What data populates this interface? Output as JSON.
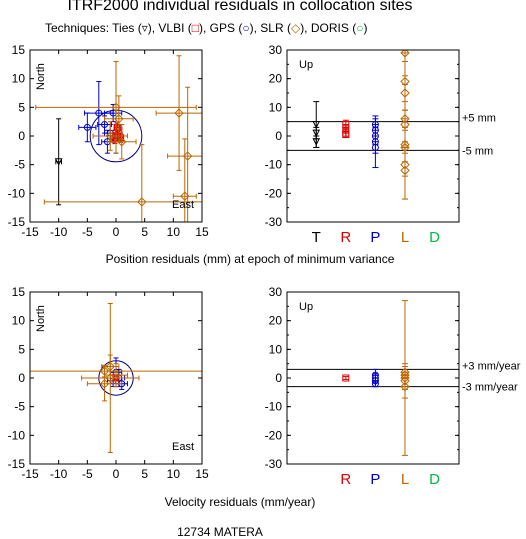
{
  "title": "ITRF2000 individual residuals in collocation sites",
  "subtitle_parts": [
    {
      "text": "Techniques: Ties (",
      "color": "#000000"
    },
    {
      "text": "▿",
      "color": "#000000"
    },
    {
      "text": "), VLBI (",
      "color": "#000000"
    },
    {
      "text": "□",
      "color": "#dd0000"
    },
    {
      "text": "), GPS (",
      "color": "#000000"
    },
    {
      "text": "○",
      "color": "#0000cc"
    },
    {
      "text": "), SLR (",
      "color": "#000000"
    },
    {
      "text": "◇",
      "color": "#bb6600"
    },
    {
      "text": "), DORIS (",
      "color": "#000000"
    },
    {
      "text": "○",
      "color": "#00bb44"
    },
    {
      "text": ")",
      "color": "#000000"
    }
  ],
  "position_xlabel": "Position residuals (mm) at epoch of minimum variance",
  "velocity_xlabel": "Velocity residuals (mm/year)",
  "station": "12734 MATERA",
  "colors": {
    "Ties": "#000000",
    "VLBI": "#dd0000",
    "GPS": "#0000cc",
    "SLR": "#bb6600",
    "DORIS": "#00bb44"
  },
  "chart_data": [
    {
      "id": "pos-horizontal",
      "type": "scatter",
      "xlabel": "",
      "ylabel": "",
      "label_north": "North",
      "label_east": "East",
      "xlim": [
        -15,
        15
      ],
      "ylim": [
        -15,
        15
      ],
      "xticks": [
        -15,
        -10,
        -5,
        0,
        5,
        10,
        15
      ],
      "yticks": [
        -15,
        -10,
        -5,
        0,
        5,
        10,
        15
      ],
      "circle_radius": 4.5,
      "series": [
        {
          "technique": "Ties",
          "marker": "triangle",
          "points": [
            {
              "x": -10,
              "y": -4.5,
              "ex": 0.5,
              "ey": 7.5
            }
          ]
        },
        {
          "technique": "GPS",
          "marker": "circle",
          "points": [
            {
              "x": -3,
              "y": 4,
              "ex": 2.5,
              "ey": 5.5
            },
            {
              "x": -5,
              "y": 1.5,
              "ex": 1.5,
              "ey": 2.5
            },
            {
              "x": -2,
              "y": 2,
              "ex": 1.2,
              "ey": 1.5
            },
            {
              "x": -1,
              "y": 0.5,
              "ex": 1,
              "ey": 1.5
            },
            {
              "x": -0.5,
              "y": 4,
              "ex": 1.5,
              "ey": 1.5
            },
            {
              "x": 0,
              "y": -0.5,
              "ex": 1,
              "ey": 2.5
            },
            {
              "x": -1.5,
              "y": -1,
              "ex": 1,
              "ey": 2
            }
          ]
        },
        {
          "technique": "VLBI",
          "marker": "square",
          "points": [
            {
              "x": 0,
              "y": 0.5,
              "ex": 0.5,
              "ey": 1
            },
            {
              "x": 0.3,
              "y": 0,
              "ex": 0.4,
              "ey": 0.8
            },
            {
              "x": -0.2,
              "y": -0.5,
              "ex": 0.4,
              "ey": 0.8
            },
            {
              "x": 0.5,
              "y": 1,
              "ex": 0.4,
              "ey": 0.8
            },
            {
              "x": 0.8,
              "y": -0.3,
              "ex": 0.4,
              "ey": 0.8
            },
            {
              "x": 0.2,
              "y": 1.5,
              "ex": 0.4,
              "ey": 0.8
            }
          ]
        },
        {
          "technique": "SLR",
          "marker": "diamond",
          "points": [
            {
              "x": 0,
              "y": 5,
              "ex": 14,
              "ey": 8
            },
            {
              "x": 0.5,
              "y": 3,
              "ex": 2.5,
              "ey": 4
            },
            {
              "x": 12.5,
              "y": -3.5,
              "ex": 3.5,
              "ey": 12
            },
            {
              "x": 11,
              "y": 4,
              "ex": 4,
              "ey": 10
            },
            {
              "x": 12,
              "y": -10.5,
              "ex": 2,
              "ey": 10
            },
            {
              "x": 4.5,
              "y": -11.5,
              "ex": 17,
              "ey": 10
            },
            {
              "x": -1,
              "y": 0,
              "ex": 3,
              "ey": 2.5
            },
            {
              "x": 1,
              "y": -1,
              "ex": 2.5,
              "ey": 3
            }
          ]
        }
      ]
    },
    {
      "id": "pos-up",
      "type": "scatter",
      "label_up": "Up",
      "ylim": [
        -30,
        30
      ],
      "yticks": [
        -30,
        -20,
        -10,
        0,
        10,
        20,
        30
      ],
      "categories": [
        "T",
        "R",
        "P",
        "L",
        "D"
      ],
      "ref_lines": [
        5,
        -5
      ],
      "ref_labels": [
        "+5 mm",
        "-5 mm"
      ],
      "series": [
        {
          "technique": "Ties",
          "category": 0,
          "marker": "triangle",
          "points": [
            {
              "y": 4,
              "ey": 8
            },
            {
              "y": 1,
              "ey": 2
            },
            {
              "y": -2,
              "ey": 2
            }
          ]
        },
        {
          "technique": "VLBI",
          "category": 1,
          "marker": "square",
          "points": [
            {
              "y": 4,
              "ey": 1.5
            },
            {
              "y": 2.5,
              "ey": 1.5
            },
            {
              "y": 1,
              "ey": 1.5
            },
            {
              "y": 0.5,
              "ey": 1
            }
          ]
        },
        {
          "technique": "GPS",
          "category": 2,
          "marker": "circle",
          "points": [
            {
              "y": -2,
              "ey": 9
            },
            {
              "y": 4,
              "ey": 2
            },
            {
              "y": 2,
              "ey": 2
            },
            {
              "y": 0,
              "ey": 3
            },
            {
              "y": -4,
              "ey": 2
            }
          ]
        },
        {
          "technique": "SLR",
          "category": 3,
          "marker": "diamond",
          "points": [
            {
              "y": 29,
              "ey": 3
            },
            {
              "y": 19,
              "ey": 10
            },
            {
              "y": 15,
              "ey": 6
            },
            {
              "y": 6,
              "ey": 12
            },
            {
              "y": 4,
              "ey": 8
            },
            {
              "y": -4,
              "ey": 10
            },
            {
              "y": -10,
              "ey": 12
            },
            {
              "y": -12,
              "ey": 10
            },
            {
              "y": -3,
              "ey": 6
            }
          ]
        }
      ]
    },
    {
      "id": "vel-horizontal",
      "type": "scatter",
      "label_north": "North",
      "label_east": "East",
      "xlim": [
        -15,
        15
      ],
      "ylim": [
        -15,
        15
      ],
      "xticks": [
        -15,
        -10,
        -5,
        0,
        5,
        10,
        15
      ],
      "yticks": [
        -15,
        -10,
        -5,
        0,
        5,
        10,
        15
      ],
      "circle_radius": 3,
      "series": [
        {
          "technique": "GPS",
          "marker": "circle",
          "points": [
            {
              "x": 0,
              "y": 1,
              "ex": 1,
              "ey": 2.5
            },
            {
              "x": 0.5,
              "y": 0,
              "ex": 1,
              "ey": 1.5
            },
            {
              "x": -0.5,
              "y": -0.5,
              "ex": 1,
              "ey": 1
            },
            {
              "x": 1,
              "y": -1,
              "ex": 1,
              "ey": 1
            }
          ]
        },
        {
          "technique": "VLBI",
          "marker": "square",
          "points": [
            {
              "x": 0,
              "y": 0,
              "ex": 0.3,
              "ey": 0.3
            }
          ]
        },
        {
          "technique": "SLR",
          "marker": "diamond",
          "points": [
            {
              "x": -2,
              "y": 1.2,
              "ex": 17,
              "ey": 1
            },
            {
              "x": -1,
              "y": 0,
              "ex": 5,
              "ey": 13
            },
            {
              "x": -2,
              "y": -1,
              "ex": 3,
              "ey": 3
            },
            {
              "x": 0,
              "y": 0.5,
              "ex": 2,
              "ey": 2
            },
            {
              "x": -1,
              "y": 2,
              "ex": 1.5,
              "ey": 2
            }
          ]
        }
      ]
    },
    {
      "id": "vel-up",
      "type": "scatter",
      "label_up": "Up",
      "ylim": [
        -30,
        30
      ],
      "yticks": [
        -30,
        -20,
        -10,
        0,
        10,
        20,
        30
      ],
      "categories": [
        "R",
        "P",
        "L",
        "D"
      ],
      "ref_lines": [
        3,
        -3
      ],
      "ref_labels": [
        "+3 mm/year",
        "-3 mm/year"
      ],
      "series": [
        {
          "technique": "VLBI",
          "category": 0,
          "marker": "square",
          "points": [
            {
              "y": 0,
              "ey": 0.5
            }
          ]
        },
        {
          "technique": "GPS",
          "category": 1,
          "marker": "circle",
          "points": [
            {
              "y": 1,
              "ey": 2
            },
            {
              "y": -1,
              "ey": 2
            },
            {
              "y": 0,
              "ey": 1.5
            },
            {
              "y": -2,
              "ey": 1
            }
          ]
        },
        {
          "technique": "SLR",
          "category": 2,
          "marker": "diamond",
          "points": [
            {
              "y": 0,
              "ey": 27
            },
            {
              "y": 1,
              "ey": 4
            },
            {
              "y": -1,
              "ey": 3
            },
            {
              "y": -3,
              "ey": 4
            },
            {
              "y": 2,
              "ey": 2
            }
          ]
        }
      ]
    }
  ]
}
